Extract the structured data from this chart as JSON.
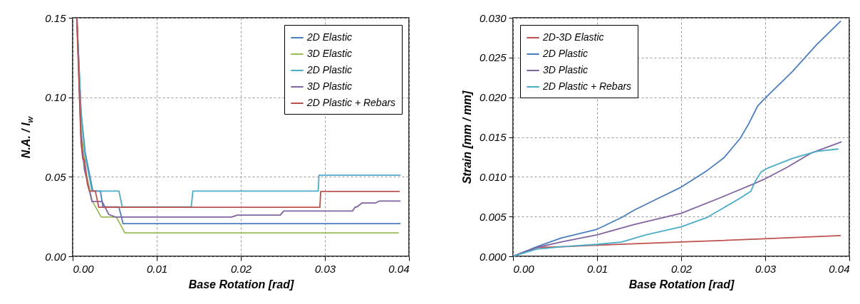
{
  "chart_data": [
    {
      "type": "line",
      "xlabel": "Base Rotation [rad]",
      "ylabel": "N.A. / l$_{w}$",
      "xlim": [
        0,
        0.04
      ],
      "ylim": [
        0,
        0.15
      ],
      "xticks": [
        {
          "value": 0,
          "label": "0.00"
        },
        {
          "value": 0.01,
          "label": "0.01"
        },
        {
          "value": 0.02,
          "label": "0.02"
        },
        {
          "value": 0.03,
          "label": "0.03"
        },
        {
          "value": 0.04,
          "label": "0.04"
        }
      ],
      "yticks": [
        {
          "value": 0,
          "label": "0.00"
        },
        {
          "value": 0.05,
          "label": "0.05"
        },
        {
          "value": 0.1,
          "label": "0.10"
        },
        {
          "value": 0.15,
          "label": "0.15"
        }
      ],
      "grid": true,
      "legend": "top right",
      "line_style": "solid",
      "series": [
        {
          "name": "2D Elastic",
          "color": "#4a7ebf",
          "x": [
            0.0005,
            0.001,
            0.0015,
            0.0024,
            0.0033,
            0.0036,
            0.0055,
            0.006,
            0.039
          ],
          "values": [
            0.15,
            0.09,
            0.065,
            0.041,
            0.041,
            0.031,
            0.031,
            0.0205,
            0.0205
          ]
        },
        {
          "name": "3D Elastic",
          "color": "#9bbb59",
          "x": [
            0.0005,
            0.001,
            0.0015,
            0.0023,
            0.0034,
            0.0052,
            0.0062,
            0.0388
          ],
          "values": [
            0.15,
            0.08,
            0.055,
            0.035,
            0.0247,
            0.0247,
            0.0147,
            0.0147
          ]
        },
        {
          "name": "2D Plastic",
          "color": "#4bacc6",
          "x": [
            0.0005,
            0.001,
            0.0015,
            0.0023,
            0.0055,
            0.0059,
            0.0141,
            0.0143,
            0.0292,
            0.0293,
            0.039
          ],
          "values": [
            0.15,
            0.09,
            0.063,
            0.041,
            0.041,
            0.031,
            0.031,
            0.041,
            0.041,
            0.051,
            0.051
          ]
        },
        {
          "name": "3D Plastic",
          "color": "#8064a2",
          "x": [
            0.0005,
            0.001,
            0.0014,
            0.0018,
            0.0023,
            0.0035,
            0.0043,
            0.0051,
            0.0189,
            0.0196,
            0.0247,
            0.0251,
            0.0333,
            0.0336,
            0.0338,
            0.0344,
            0.036,
            0.0365,
            0.039
          ],
          "values": [
            0.15,
            0.075,
            0.0545,
            0.0455,
            0.0344,
            0.0344,
            0.0263,
            0.0247,
            0.0247,
            0.0259,
            0.0259,
            0.0285,
            0.0285,
            0.031,
            0.031,
            0.0335,
            0.0335,
            0.0348,
            0.0348
          ]
        },
        {
          "name": "2D Plastic + Rebars",
          "color": "#c0504d",
          "x": [
            0.00048,
            0.00099,
            0.0012,
            0.0014,
            0.00175,
            0.002,
            0.0027,
            0.0031,
            0.0294,
            0.0295,
            0.0389
          ],
          "values": [
            0.15,
            0.0716,
            0.061,
            0.061,
            0.0455,
            0.041,
            0.041,
            0.0308,
            0.0308,
            0.0408,
            0.0408
          ]
        }
      ]
    },
    {
      "type": "line",
      "xlabel": "Base Rotation [rad]",
      "ylabel": "Strain [mm / mm]",
      "xlim": [
        0,
        0.04
      ],
      "ylim": [
        0,
        0.03
      ],
      "xticks": [
        {
          "value": 0,
          "label": "0.00"
        },
        {
          "value": 0.01,
          "label": "0.01"
        },
        {
          "value": 0.02,
          "label": "0.02"
        },
        {
          "value": 0.03,
          "label": "0.03"
        },
        {
          "value": 0.04,
          "label": "0.04"
        }
      ],
      "yticks": [
        {
          "value": 0,
          "label": "0.000"
        },
        {
          "value": 0.005,
          "label": "0.005"
        },
        {
          "value": 0.01,
          "label": "0.010"
        },
        {
          "value": 0.015,
          "label": "0.015"
        },
        {
          "value": 0.02,
          "label": "0.020"
        },
        {
          "value": 0.025,
          "label": "0.025"
        },
        {
          "value": 0.03,
          "label": "0.030"
        }
      ],
      "grid": true,
      "legend": "top left",
      "line_style": "solid",
      "series": [
        {
          "name": "2D-3D Elastic",
          "color": "#c0504d",
          "x": [
            0,
            0.00283,
            0.00572,
            0.01,
            0.02,
            0.0299,
            0.039
          ],
          "values": [
            0,
            0.0011,
            0.0012,
            0.0014,
            0.0018,
            0.0022,
            0.0026
          ]
        },
        {
          "name": "2D Plastic",
          "color": "#4a7ebf",
          "x": [
            0,
            0.00283,
            0.00572,
            0.01,
            0.01295,
            0.0144,
            0.01728,
            0.02,
            0.0231,
            0.0251,
            0.027,
            0.028,
            0.0291,
            0.0299,
            0.0332,
            0.0361,
            0.039
          ],
          "values": [
            0,
            0.0012,
            0.0023,
            0.0034,
            0.0049,
            0.0058,
            0.0073,
            0.0087,
            0.0108,
            0.0124,
            0.0148,
            0.0166,
            0.0189,
            0.0198,
            0.0232,
            0.0266,
            0.0296
          ]
        },
        {
          "name": "3D Plastic",
          "color": "#8064a2",
          "x": [
            0,
            0.00283,
            0.00572,
            0.01,
            0.0144,
            0.02,
            0.0245,
            0.0286,
            0.0299,
            0.0326,
            0.0355,
            0.0391
          ],
          "values": [
            0,
            0.0011,
            0.0018,
            0.0027,
            0.004,
            0.0054,
            0.0073,
            0.0091,
            0.0097,
            0.0112,
            0.013,
            0.0144
          ]
        },
        {
          "name": "2D Plastic + Rebars",
          "color": "#4bacc6",
          "x": [
            0,
            0.00283,
            0.00572,
            0.01,
            0.01295,
            0.0158,
            0.02,
            0.0231,
            0.027,
            0.0283,
            0.0288,
            0.0295,
            0.0303,
            0.0332,
            0.0361,
            0.0387
          ],
          "values": [
            0,
            0.0009,
            0.0012,
            0.0015,
            0.0018,
            0.0027,
            0.0037,
            0.0049,
            0.0073,
            0.0082,
            0.0094,
            0.0106,
            0.0111,
            0.0123,
            0.0132,
            0.0135
          ]
        }
      ]
    }
  ]
}
